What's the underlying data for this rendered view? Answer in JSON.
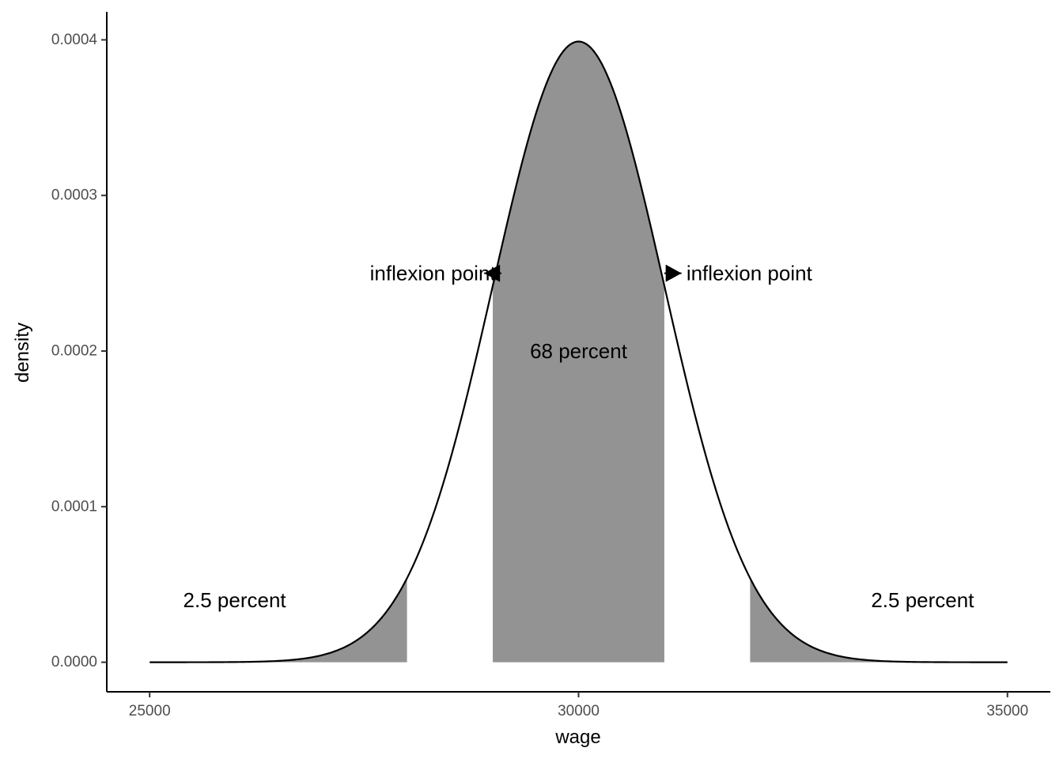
{
  "chart_data": {
    "type": "area",
    "distribution": {
      "kind": "normal",
      "mean": 30000,
      "sd": 1000
    },
    "x_range": [
      25000,
      35000
    ],
    "xlim": [
      24500,
      35500
    ],
    "ylim": [
      -1.9e-05,
      0.000418
    ],
    "xlabel": "wage",
    "ylabel": "density",
    "x_ticks": [
      {
        "value": 25000,
        "label": "25000"
      },
      {
        "value": 30000,
        "label": "30000"
      },
      {
        "value": 35000,
        "label": "35000"
      }
    ],
    "y_ticks": [
      {
        "value": 0,
        "label": "0.0000"
      },
      {
        "value": 0.0001,
        "label": "0.0001"
      },
      {
        "value": 0.0002,
        "label": "0.0002"
      },
      {
        "value": 0.0003,
        "label": "0.0003"
      },
      {
        "value": 0.0004,
        "label": "0.0004"
      }
    ],
    "grid": false,
    "shaded_regions": [
      {
        "from": 25000,
        "to": 28000,
        "fill": "#939393"
      },
      {
        "from": 29000,
        "to": 31000,
        "fill": "#939393"
      },
      {
        "from": 32000,
        "to": 35000,
        "fill": "#939393"
      }
    ],
    "arrows": [
      {
        "x_from": 29100,
        "x_to": 28900,
        "y": 0.00025
      },
      {
        "x_from": 31000,
        "x_to": 31200,
        "y": 0.00025
      }
    ],
    "annotations": [
      {
        "text": "inflexion point",
        "x": 28300,
        "y": 0.00025
      },
      {
        "text": "inflexion point",
        "x": 31990,
        "y": 0.00025
      },
      {
        "text": "68 percent",
        "x": 30000,
        "y": 0.0002
      },
      {
        "text": "2.5 percent",
        "x": 25990,
        "y": 4e-05
      },
      {
        "text": "2.5 percent",
        "x": 34010,
        "y": 4e-05
      }
    ],
    "line_color": "#000000"
  }
}
